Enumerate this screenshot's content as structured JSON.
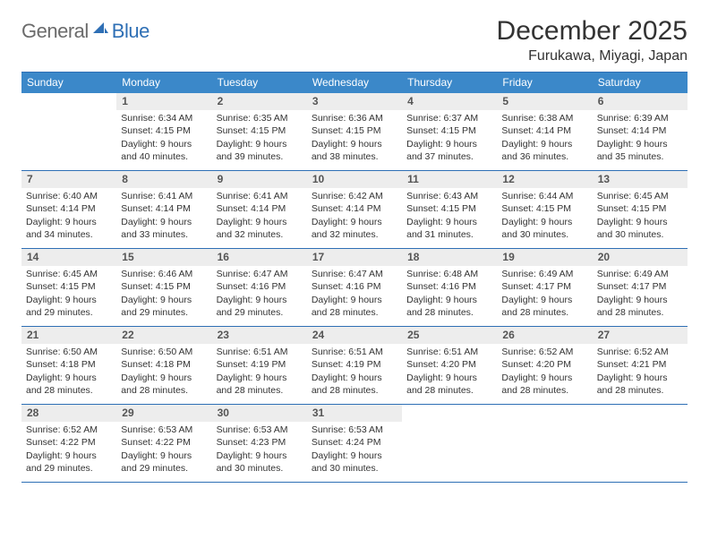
{
  "logo": {
    "part1": "General",
    "part2": "Blue",
    "icon_color": "#2e6fb5",
    "text1_color": "#6b6b6b",
    "text2_color": "#2e6fb5"
  },
  "header": {
    "title": "December 2025",
    "location": "Furukawa, Miyagi, Japan"
  },
  "colors": {
    "header_bg": "#3b88c9",
    "border": "#2e6fb5",
    "daynum_bg": "#ededed",
    "page_bg": "#ffffff",
    "text": "#333333"
  },
  "weekdays": [
    "Sunday",
    "Monday",
    "Tuesday",
    "Wednesday",
    "Thursday",
    "Friday",
    "Saturday"
  ],
  "weeks": [
    [
      {
        "n": "",
        "sr": "",
        "ss": "",
        "dl": ""
      },
      {
        "n": "1",
        "sr": "Sunrise: 6:34 AM",
        "ss": "Sunset: 4:15 PM",
        "dl": "Daylight: 9 hours and 40 minutes."
      },
      {
        "n": "2",
        "sr": "Sunrise: 6:35 AM",
        "ss": "Sunset: 4:15 PM",
        "dl": "Daylight: 9 hours and 39 minutes."
      },
      {
        "n": "3",
        "sr": "Sunrise: 6:36 AM",
        "ss": "Sunset: 4:15 PM",
        "dl": "Daylight: 9 hours and 38 minutes."
      },
      {
        "n": "4",
        "sr": "Sunrise: 6:37 AM",
        "ss": "Sunset: 4:15 PM",
        "dl": "Daylight: 9 hours and 37 minutes."
      },
      {
        "n": "5",
        "sr": "Sunrise: 6:38 AM",
        "ss": "Sunset: 4:14 PM",
        "dl": "Daylight: 9 hours and 36 minutes."
      },
      {
        "n": "6",
        "sr": "Sunrise: 6:39 AM",
        "ss": "Sunset: 4:14 PM",
        "dl": "Daylight: 9 hours and 35 minutes."
      }
    ],
    [
      {
        "n": "7",
        "sr": "Sunrise: 6:40 AM",
        "ss": "Sunset: 4:14 PM",
        "dl": "Daylight: 9 hours and 34 minutes."
      },
      {
        "n": "8",
        "sr": "Sunrise: 6:41 AM",
        "ss": "Sunset: 4:14 PM",
        "dl": "Daylight: 9 hours and 33 minutes."
      },
      {
        "n": "9",
        "sr": "Sunrise: 6:41 AM",
        "ss": "Sunset: 4:14 PM",
        "dl": "Daylight: 9 hours and 32 minutes."
      },
      {
        "n": "10",
        "sr": "Sunrise: 6:42 AM",
        "ss": "Sunset: 4:14 PM",
        "dl": "Daylight: 9 hours and 32 minutes."
      },
      {
        "n": "11",
        "sr": "Sunrise: 6:43 AM",
        "ss": "Sunset: 4:15 PM",
        "dl": "Daylight: 9 hours and 31 minutes."
      },
      {
        "n": "12",
        "sr": "Sunrise: 6:44 AM",
        "ss": "Sunset: 4:15 PM",
        "dl": "Daylight: 9 hours and 30 minutes."
      },
      {
        "n": "13",
        "sr": "Sunrise: 6:45 AM",
        "ss": "Sunset: 4:15 PM",
        "dl": "Daylight: 9 hours and 30 minutes."
      }
    ],
    [
      {
        "n": "14",
        "sr": "Sunrise: 6:45 AM",
        "ss": "Sunset: 4:15 PM",
        "dl": "Daylight: 9 hours and 29 minutes."
      },
      {
        "n": "15",
        "sr": "Sunrise: 6:46 AM",
        "ss": "Sunset: 4:15 PM",
        "dl": "Daylight: 9 hours and 29 minutes."
      },
      {
        "n": "16",
        "sr": "Sunrise: 6:47 AM",
        "ss": "Sunset: 4:16 PM",
        "dl": "Daylight: 9 hours and 29 minutes."
      },
      {
        "n": "17",
        "sr": "Sunrise: 6:47 AM",
        "ss": "Sunset: 4:16 PM",
        "dl": "Daylight: 9 hours and 28 minutes."
      },
      {
        "n": "18",
        "sr": "Sunrise: 6:48 AM",
        "ss": "Sunset: 4:16 PM",
        "dl": "Daylight: 9 hours and 28 minutes."
      },
      {
        "n": "19",
        "sr": "Sunrise: 6:49 AM",
        "ss": "Sunset: 4:17 PM",
        "dl": "Daylight: 9 hours and 28 minutes."
      },
      {
        "n": "20",
        "sr": "Sunrise: 6:49 AM",
        "ss": "Sunset: 4:17 PM",
        "dl": "Daylight: 9 hours and 28 minutes."
      }
    ],
    [
      {
        "n": "21",
        "sr": "Sunrise: 6:50 AM",
        "ss": "Sunset: 4:18 PM",
        "dl": "Daylight: 9 hours and 28 minutes."
      },
      {
        "n": "22",
        "sr": "Sunrise: 6:50 AM",
        "ss": "Sunset: 4:18 PM",
        "dl": "Daylight: 9 hours and 28 minutes."
      },
      {
        "n": "23",
        "sr": "Sunrise: 6:51 AM",
        "ss": "Sunset: 4:19 PM",
        "dl": "Daylight: 9 hours and 28 minutes."
      },
      {
        "n": "24",
        "sr": "Sunrise: 6:51 AM",
        "ss": "Sunset: 4:19 PM",
        "dl": "Daylight: 9 hours and 28 minutes."
      },
      {
        "n": "25",
        "sr": "Sunrise: 6:51 AM",
        "ss": "Sunset: 4:20 PM",
        "dl": "Daylight: 9 hours and 28 minutes."
      },
      {
        "n": "26",
        "sr": "Sunrise: 6:52 AM",
        "ss": "Sunset: 4:20 PM",
        "dl": "Daylight: 9 hours and 28 minutes."
      },
      {
        "n": "27",
        "sr": "Sunrise: 6:52 AM",
        "ss": "Sunset: 4:21 PM",
        "dl": "Daylight: 9 hours and 28 minutes."
      }
    ],
    [
      {
        "n": "28",
        "sr": "Sunrise: 6:52 AM",
        "ss": "Sunset: 4:22 PM",
        "dl": "Daylight: 9 hours and 29 minutes."
      },
      {
        "n": "29",
        "sr": "Sunrise: 6:53 AM",
        "ss": "Sunset: 4:22 PM",
        "dl": "Daylight: 9 hours and 29 minutes."
      },
      {
        "n": "30",
        "sr": "Sunrise: 6:53 AM",
        "ss": "Sunset: 4:23 PM",
        "dl": "Daylight: 9 hours and 30 minutes."
      },
      {
        "n": "31",
        "sr": "Sunrise: 6:53 AM",
        "ss": "Sunset: 4:24 PM",
        "dl": "Daylight: 9 hours and 30 minutes."
      },
      {
        "n": "",
        "sr": "",
        "ss": "",
        "dl": ""
      },
      {
        "n": "",
        "sr": "",
        "ss": "",
        "dl": ""
      },
      {
        "n": "",
        "sr": "",
        "ss": "",
        "dl": ""
      }
    ]
  ]
}
